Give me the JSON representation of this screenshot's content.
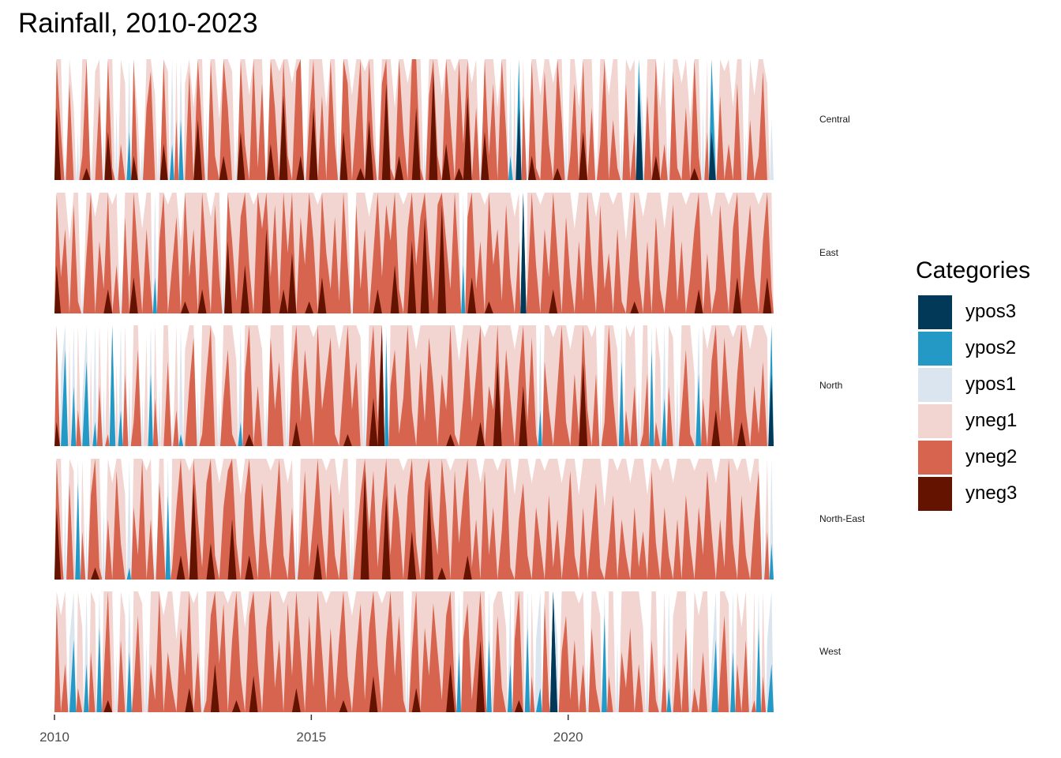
{
  "chart_data": {
    "type": "horizon",
    "title": "Rainfall, 2010-2023",
    "xlabel": "",
    "ylabel": "",
    "xlim": [
      2010,
      2024
    ],
    "x_ticks": [
      2010,
      2015,
      2020
    ],
    "x_tick_labels": [
      "2010",
      "2015",
      "2020"
    ],
    "value_units": "band units (negative = below origin, positive = above; each band = 1 unit)",
    "grid": false,
    "legend": {
      "title": "Categories",
      "position": "right",
      "entries": [
        {
          "label": "ypos3",
          "color": "#023858"
        },
        {
          "label": "ypos2",
          "color": "#2499c6"
        },
        {
          "label": "ypos1",
          "color": "#dae5ef"
        },
        {
          "label": "yneg1",
          "color": "#f2d4d1"
        },
        {
          "label": "yneg2",
          "color": "#d6644e"
        },
        {
          "label": "yneg3",
          "color": "#641300"
        }
      ]
    },
    "sample_frequency": "monthly, Jan 2010 - Dec 2023",
    "series": [
      {
        "name": "Central",
        "values": [
          -2.6,
          -1.4,
          0.3,
          -1.8,
          -0.6,
          0.4,
          -1.2,
          -2.1,
          0.2,
          -0.9,
          -1.7,
          0.5,
          -2.4,
          -1.1,
          0.6,
          -1.3,
          -0.8,
          1.4,
          -2.2,
          -0.5,
          0.3,
          -1.6,
          -1.9,
          -0.7,
          0.4,
          -2.3,
          -0.9,
          1.3,
          -1.5,
          1.5,
          -0.8,
          -1.9,
          -0.6,
          -2.5,
          -1.4,
          0.6,
          -2.0,
          -1.2,
          -0.5,
          -2.2,
          -1.6,
          -0.9,
          0.4,
          -2.4,
          -1.3,
          -0.7,
          -2.0,
          -1.1,
          -1.8,
          0.3,
          -2.3,
          -1.6,
          -0.9,
          -2.7,
          -1.2,
          -0.8,
          -1.9,
          -2.2,
          0.4,
          -1.5,
          -2.6,
          -1.0,
          -1.7,
          -0.6,
          -2.0,
          -1.3,
          0.5,
          -2.4,
          -1.8,
          -0.7,
          -1.5,
          -2.1,
          -0.9,
          -2.5,
          -1.3,
          0.3,
          -1.8,
          -2.8,
          -1.1,
          -0.6,
          -2.2,
          -1.4,
          -0.8,
          -2.0,
          -2.6,
          -1.1,
          0.4,
          -1.7,
          -2.9,
          -1.2,
          -0.7,
          -2.3,
          -1.5,
          -0.9,
          -2.1,
          -1.3,
          -2.7,
          -0.8,
          -1.6,
          0.3,
          -2.4,
          -1.2,
          -1.8,
          -0.6,
          -2.0,
          -1.4,
          1.2,
          -0.9,
          2.6,
          -1.7,
          0.4,
          -2.2,
          -1.1,
          -0.7,
          -1.9,
          -1.3,
          -0.8,
          -2.1,
          -1.5,
          0.5,
          -1.2,
          -1.8,
          -0.6,
          -2.4,
          -1.0,
          -1.6,
          0.3,
          -1.3,
          -2.0,
          -0.7,
          -1.5,
          -1.1,
          0.4,
          -1.8,
          -0.9,
          -1.4,
          2.8,
          0.5,
          -1.7,
          -1.0,
          -2.2,
          -0.6,
          -1.3,
          0.4,
          -1.9,
          -1.1,
          -0.8,
          -1.6,
          -0.5,
          -2.1,
          -1.2,
          0.6,
          -1.4,
          2.4,
          0.3,
          -1.7,
          -0.9,
          -1.3,
          -0.6,
          -1.8,
          -1.0,
          0.4,
          -1.5,
          -0.7,
          -1.2,
          -1.9,
          -0.8,
          0.5
        ]
      },
      {
        "name": "East",
        "values": [
          -2.4,
          -1.3,
          -1.7,
          -0.6,
          -1.9,
          -1.1,
          0.3,
          -1.5,
          -2.0,
          -0.8,
          -1.6,
          -1.2,
          -2.2,
          -0.9,
          -1.4,
          0.4,
          -1.8,
          -1.0,
          -2.3,
          -1.5,
          -0.7,
          -1.7,
          -1.2,
          1.3,
          -1.6,
          -2.0,
          -0.9,
          -1.4,
          -1.8,
          -0.6,
          -2.1,
          -1.3,
          -1.7,
          -1.0,
          -2.2,
          -1.5,
          -0.8,
          -1.9,
          -1.3,
          0.5,
          -2.6,
          -1.6,
          -1.1,
          -1.8,
          -2.4,
          -1.4,
          -0.9,
          -2.0,
          -1.7,
          -2.7,
          -1.3,
          -1.9,
          -1.1,
          -2.2,
          -1.5,
          -2.5,
          -1.0,
          -1.8,
          -1.4,
          -2.1,
          -1.6,
          -0.9,
          -2.3,
          -1.5,
          -1.2,
          -1.8,
          -1.1,
          -2.0,
          -1.4,
          0.4,
          -1.9,
          -1.2,
          -1.7,
          -0.8,
          -1.5,
          -2.2,
          -1.3,
          -1.9,
          -1.6,
          -2.4,
          -1.2,
          -0.9,
          -1.7,
          -2.6,
          -1.4,
          -1.8,
          -2.8,
          -1.5,
          -1.1,
          -1.9,
          -2.9,
          -1.6,
          -1.2,
          -2.0,
          -1.4,
          1.4,
          -1.8,
          -2.3,
          -1.2,
          -1.6,
          -0.9,
          -2.1,
          -1.4,
          -1.7,
          -1.1,
          -1.9,
          -1.3,
          -0.8,
          -1.6,
          3.0,
          -1.2,
          -2.0,
          -1.4,
          -0.9,
          -1.7,
          -1.3,
          -2.2,
          -1.5,
          -1.0,
          -1.8,
          -1.3,
          -0.7,
          -1.6,
          -1.1,
          -2.0,
          -1.4,
          -0.8,
          -1.9,
          -1.2,
          -1.5,
          -0.9,
          -1.7,
          -1.1,
          -0.6,
          -1.5,
          -2.1,
          -1.3,
          -0.8,
          -1.6,
          -1.0,
          -1.8,
          -1.2,
          -0.7,
          -1.4,
          -1.9,
          -1.1,
          -1.6,
          -0.9,
          -1.3,
          -1.7,
          -2.2,
          -1.0,
          -1.5,
          -0.8,
          -1.2,
          -1.9,
          -1.4,
          -0.9,
          -1.7,
          -2.3,
          -1.1,
          -1.5,
          -1.9,
          -1.3,
          -0.9,
          -1.6,
          -2.3,
          -1.2
        ]
      },
      {
        "name": "North",
        "values": [
          -2.2,
          0.6,
          1.8,
          -0.9,
          1.5,
          -1.3,
          0.4,
          1.7,
          -0.8,
          1.2,
          -1.5,
          0.5,
          -1.1,
          2.0,
          -0.7,
          1.3,
          -1.6,
          0.6,
          -1.2,
          -1.8,
          0.4,
          -0.9,
          1.6,
          -1.4,
          0.5,
          -1.0,
          -1.7,
          0.3,
          -1.3,
          1.1,
          -0.8,
          -1.5,
          -1.9,
          0.5,
          -1.1,
          -1.6,
          -2.0,
          -0.9,
          0.4,
          -1.4,
          -1.8,
          -1.1,
          -0.7,
          1.2,
          -1.6,
          -2.1,
          -1.0,
          -1.5,
          -0.8,
          0.4,
          -1.9,
          -1.3,
          -1.7,
          -1.0,
          0.5,
          -1.6,
          -2.2,
          -1.2,
          -1.8,
          -1.4,
          -0.9,
          -2.0,
          -1.3,
          -1.6,
          -1.9,
          -1.1,
          -0.8,
          -1.5,
          -2.1,
          -1.3,
          -1.7,
          -0.9,
          0.6,
          -1.6,
          -2.4,
          -1.2,
          -3.0,
          1.9,
          -1.5,
          -1.8,
          -1.1,
          -1.4,
          -2.0,
          -1.3,
          -0.8,
          -1.7,
          -1.2,
          -1.9,
          -1.5,
          -1.0,
          -1.6,
          -1.3,
          -2.1,
          -1.1,
          -0.7,
          -1.4,
          -1.9,
          -1.2,
          -1.6,
          -2.2,
          -0.9,
          -1.5,
          -1.3,
          -2.7,
          -1.1,
          -1.8,
          -1.4,
          -0.8,
          -1.6,
          -2.5,
          -1.2,
          -1.9,
          -1.1,
          1.3,
          -1.7,
          -1.3,
          -0.9,
          -1.5,
          -2.0,
          -1.2,
          -0.8,
          -1.6,
          -1.1,
          -2.7,
          -1.3,
          -0.9,
          -1.6,
          0.4,
          -1.2,
          -2.0,
          -1.4,
          -0.8,
          1.7,
          -1.3,
          -0.9,
          -1.5,
          0.5,
          -1.1,
          -1.6,
          1.8,
          -1.2,
          -0.7,
          1.4,
          -1.5,
          -0.9,
          0.6,
          -1.3,
          -1.8,
          -1.1,
          -0.6,
          1.6,
          -1.4,
          -0.8,
          -1.7,
          -2.3,
          -1.2,
          -1.9,
          -1.4,
          -0.9,
          -1.6,
          -2.2,
          -1.3,
          -0.8,
          -1.5,
          -1.1,
          -1.7,
          -0.9,
          2.6
        ]
      },
      {
        "name": "North-East",
        "values": [
          -2.6,
          -1.3,
          0.7,
          -1.8,
          -0.9,
          1.8,
          -1.4,
          0.5,
          -1.7,
          -2.1,
          -1.1,
          0.6,
          -1.5,
          -0.8,
          -1.9,
          -1.3,
          -0.7,
          1.1,
          -1.6,
          -1.2,
          -2.0,
          -0.9,
          -1.5,
          0.4,
          -1.8,
          -1.3,
          1.7,
          -1.1,
          -1.6,
          -2.2,
          -1.4,
          -0.9,
          -2.8,
          -1.5,
          -1.1,
          -1.8,
          -2.3,
          -1.2,
          -0.8,
          -1.6,
          -1.9,
          -2.5,
          -1.3,
          -0.7,
          -1.7,
          -2.2,
          -1.4,
          -1.0,
          -1.8,
          -1.3,
          -0.9,
          -1.5,
          -2.0,
          -1.2,
          -0.8,
          -1.6,
          0.5,
          -1.3,
          -1.9,
          -1.1,
          -1.5,
          -2.3,
          -1.4,
          -0.9,
          -1.8,
          -1.2,
          -0.7,
          -1.6,
          -1.0,
          0.4,
          -1.3,
          -1.7,
          -2.9,
          -1.4,
          -1.9,
          -1.1,
          -1.6,
          -2.7,
          -1.2,
          -1.8,
          -1.5,
          -0.9,
          -1.7,
          -2.4,
          -1.3,
          -1.0,
          -1.8,
          -2.8,
          -1.5,
          -1.2,
          -2.1,
          -1.6,
          -0.9,
          -1.9,
          -1.3,
          -1.7,
          -2.2,
          -1.1,
          -1.5,
          -0.8,
          -1.9,
          -1.2,
          -1.6,
          -0.9,
          -1.4,
          -2.0,
          -1.1,
          -0.7,
          -1.5,
          -1.8,
          -1.2,
          -0.8,
          -1.6,
          -1.3,
          -0.9,
          -1.7,
          -1.1,
          -1.5,
          -0.8,
          -1.4,
          -1.9,
          -1.2,
          -0.7,
          -1.6,
          -1.0,
          -1.4,
          -1.8,
          -1.1,
          -0.6,
          -1.3,
          -1.7,
          -0.9,
          -1.5,
          -1.2,
          -0.8,
          -1.6,
          -1.1,
          -1.4,
          -0.7,
          -1.9,
          -1.3,
          -0.9,
          -1.6,
          -1.2,
          -0.8,
          -1.5,
          -1.0,
          -1.7,
          -1.3,
          -0.9,
          -1.6,
          -1.2,
          -1.9,
          -1.4,
          -0.8,
          -1.5,
          -1.1,
          -2.0,
          -1.3,
          -0.9,
          -1.7,
          -1.2,
          -0.8,
          -1.5,
          -1.9,
          0.6,
          -1.4,
          1.3
        ]
      },
      {
        "name": "West",
        "values": [
          -1.9,
          -0.8,
          -1.4,
          0.6,
          1.6,
          -1.2,
          -0.7,
          1.4,
          -1.5,
          -0.9,
          1.7,
          -1.3,
          -2.1,
          -1.0,
          0.5,
          -1.6,
          -0.8,
          1.5,
          -1.2,
          -1.8,
          -0.9,
          0.6,
          -1.4,
          -1.1,
          -2.0,
          -0.8,
          -1.5,
          -1.2,
          -0.6,
          -1.7,
          -1.3,
          -2.2,
          -0.9,
          -1.5,
          0.4,
          -1.1,
          -1.8,
          -2.4,
          -1.4,
          -1.9,
          -0.9,
          -1.6,
          -2.1,
          -1.3,
          -0.7,
          -1.8,
          -2.3,
          -1.4,
          -1.0,
          -1.7,
          -2.0,
          -1.2,
          -1.6,
          -0.9,
          -1.9,
          -1.3,
          -2.2,
          -1.5,
          -1.0,
          -1.8,
          -1.2,
          -2.0,
          -1.5,
          -0.9,
          -1.7,
          -1.1,
          -1.6,
          -2.1,
          -1.3,
          -0.8,
          -1.5,
          -1.9,
          -1.1,
          -1.7,
          -2.3,
          -1.4,
          -0.9,
          -1.6,
          -2.0,
          -1.3,
          -1.8,
          -1.1,
          0.5,
          -1.5,
          -2.2,
          -1.0,
          -1.7,
          -1.3,
          -1.9,
          -1.5,
          -1.1,
          -1.8,
          -2.4,
          -1.2,
          1.5,
          -1.6,
          -1.9,
          -1.1,
          -1.5,
          -2.6,
          -1.3,
          1.6,
          -0.9,
          -1.8,
          -1.2,
          -0.7,
          1.4,
          -1.6,
          -2.1,
          -1.0,
          1.7,
          -1.3,
          0.6,
          1.2,
          -1.9,
          -1.1,
          3.0,
          0.6,
          -1.5,
          -1.8,
          -1.1,
          -1.6,
          -0.9,
          -1.4,
          0.5,
          -1.7,
          -1.2,
          -0.8,
          1.8,
          -1.3,
          -1.0,
          0.6,
          -1.5,
          -1.2,
          -1.7,
          -1.0,
          -1.4,
          -0.7,
          0.5,
          -1.6,
          -1.1,
          0.4,
          -1.4,
          1.2,
          -0.8,
          -1.5,
          -1.0,
          -1.7,
          0.6,
          -1.2,
          -0.8,
          -1.5,
          -1.0,
          0.4,
          1.6,
          -1.3,
          -1.8,
          -0.9,
          1.5,
          -1.4,
          -0.7,
          -1.6,
          0.5,
          -1.1,
          1.7,
          -1.3,
          0.6,
          1.4
        ]
      }
    ]
  }
}
